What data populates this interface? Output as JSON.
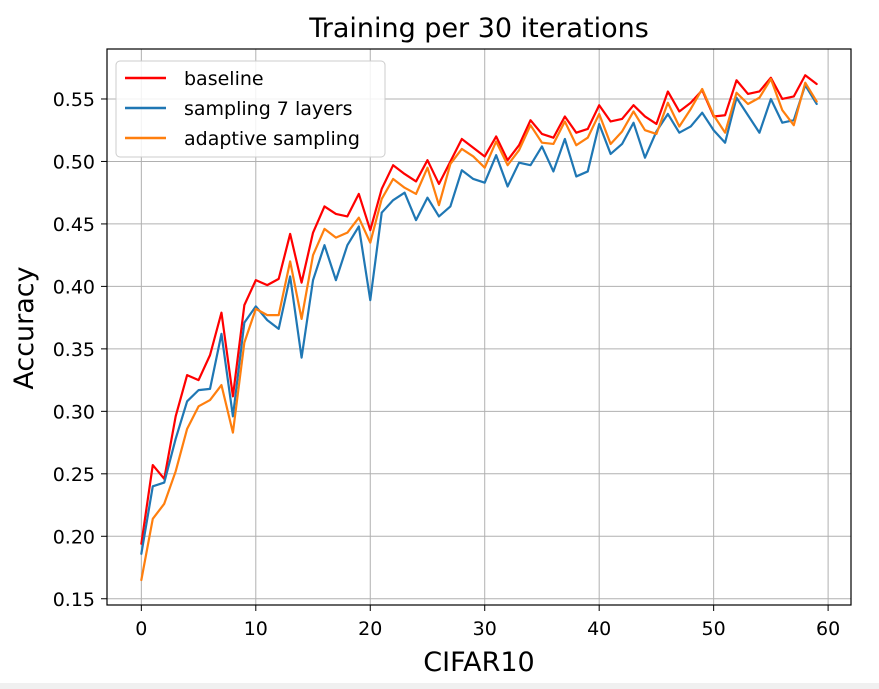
{
  "chart_data": {
    "type": "line",
    "title": "Training per 30 iterations",
    "xlabel": "CIFAR10",
    "ylabel": "Accuracy",
    "xlim": [
      -3,
      62
    ],
    "ylim": [
      0.145,
      0.59
    ],
    "xticks": [
      0,
      10,
      20,
      30,
      40,
      50,
      60
    ],
    "yticks": [
      0.15,
      0.2,
      0.25,
      0.3,
      0.35,
      0.4,
      0.45,
      0.5,
      0.55
    ],
    "grid": true,
    "legend_position": "top-left",
    "x": [
      0,
      1,
      2,
      3,
      4,
      5,
      6,
      7,
      8,
      9,
      10,
      11,
      12,
      13,
      14,
      15,
      16,
      17,
      18,
      19,
      20,
      21,
      22,
      23,
      24,
      25,
      26,
      27,
      28,
      29,
      30,
      31,
      32,
      33,
      34,
      35,
      36,
      37,
      38,
      39,
      40,
      41,
      42,
      43,
      44,
      45,
      46,
      47,
      48,
      49,
      50,
      51,
      52,
      53,
      54,
      55,
      56,
      57,
      58,
      59
    ],
    "series": [
      {
        "name": "baseline",
        "color": "#ff0000",
        "values": [
          0.194,
          0.257,
          0.246,
          0.296,
          0.329,
          0.325,
          0.345,
          0.379,
          0.312,
          0.385,
          0.405,
          0.401,
          0.406,
          0.442,
          0.403,
          0.443,
          0.464,
          0.458,
          0.456,
          0.474,
          0.445,
          0.478,
          0.497,
          0.49,
          0.484,
          0.501,
          0.482,
          0.5,
          0.518,
          0.511,
          0.504,
          0.52,
          0.501,
          0.513,
          0.533,
          0.522,
          0.519,
          0.536,
          0.523,
          0.526,
          0.545,
          0.532,
          0.534,
          0.545,
          0.536,
          0.53,
          0.556,
          0.54,
          0.547,
          0.557,
          0.536,
          0.537,
          0.565,
          0.554,
          0.556,
          0.567,
          0.55,
          0.552,
          0.569,
          0.562
        ]
      },
      {
        "name": "sampling 7 layers",
        "color": "#1f77b4",
        "values": [
          0.186,
          0.24,
          0.243,
          0.278,
          0.308,
          0.317,
          0.318,
          0.362,
          0.296,
          0.371,
          0.384,
          0.373,
          0.366,
          0.408,
          0.343,
          0.405,
          0.433,
          0.405,
          0.433,
          0.448,
          0.389,
          0.459,
          0.469,
          0.475,
          0.453,
          0.471,
          0.456,
          0.464,
          0.493,
          0.486,
          0.483,
          0.505,
          0.48,
          0.499,
          0.497,
          0.512,
          0.492,
          0.518,
          0.488,
          0.492,
          0.53,
          0.506,
          0.514,
          0.531,
          0.503,
          0.524,
          0.538,
          0.523,
          0.528,
          0.539,
          0.525,
          0.515,
          0.551,
          0.537,
          0.523,
          0.55,
          0.531,
          0.533,
          0.561,
          0.546
        ]
      },
      {
        "name": "adaptive sampling",
        "color": "#ff7f0e",
        "values": [
          0.165,
          0.214,
          0.226,
          0.252,
          0.286,
          0.304,
          0.309,
          0.321,
          0.283,
          0.355,
          0.382,
          0.377,
          0.377,
          0.42,
          0.374,
          0.425,
          0.446,
          0.439,
          0.443,
          0.455,
          0.435,
          0.47,
          0.486,
          0.479,
          0.474,
          0.495,
          0.465,
          0.498,
          0.51,
          0.504,
          0.495,
          0.516,
          0.497,
          0.509,
          0.529,
          0.515,
          0.514,
          0.532,
          0.513,
          0.519,
          0.538,
          0.514,
          0.524,
          0.54,
          0.525,
          0.522,
          0.547,
          0.528,
          0.542,
          0.558,
          0.537,
          0.523,
          0.555,
          0.546,
          0.551,
          0.566,
          0.541,
          0.529,
          0.563,
          0.548
        ]
      }
    ]
  }
}
